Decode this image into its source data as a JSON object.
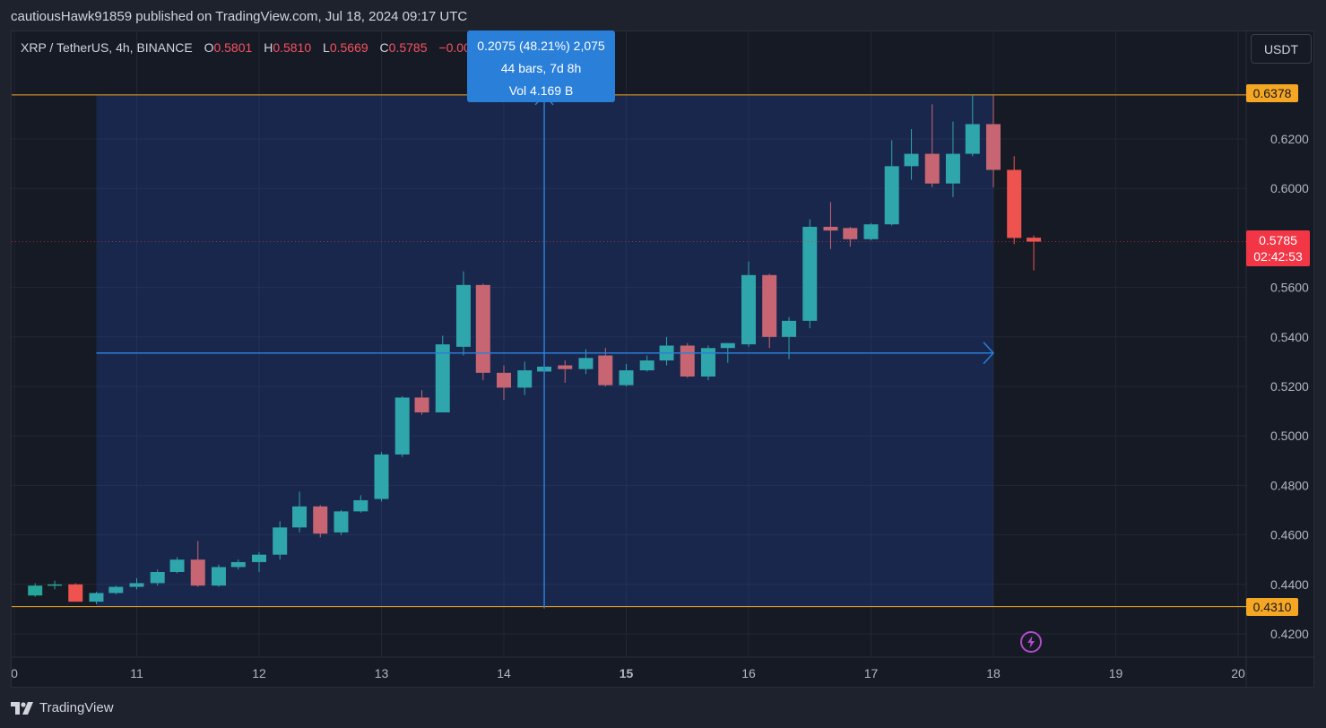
{
  "publisher_line": "cautiousHawk91859 published on TradingView.com, Jul 18, 2024 09:17 UTC",
  "legend": {
    "symbol": "XRP / TetherUS, 4h, BINANCE",
    "open_label": "O",
    "open": "0.5801",
    "high_label": "H",
    "high": "0.5810",
    "low_label": "L",
    "low": "0.5669",
    "close_label": "C",
    "close": "0.5785",
    "change": "−0.0015 (−0.26%)"
  },
  "currency": "USDT",
  "measure": {
    "line1": "0.2075 (48.21%) 2,075",
    "line2": "44 bars, 7d 8h",
    "line3": "Vol 4.169 B"
  },
  "price_tags": {
    "high": "0.6378",
    "low": "0.4310",
    "last": "0.5785",
    "countdown": "02:42:53"
  },
  "brand": "TradingView",
  "icons": {
    "logo": "tradingview-logo-icon",
    "flash": "lightning-icon"
  },
  "colors": {
    "up": "#26a69a",
    "down": "#ef5350",
    "up_muted": "#2fa5ac",
    "down_muted": "#c76672",
    "accent": "#2962ff",
    "level": "#f5a623"
  },
  "chart_data": {
    "type": "candlestick",
    "x_ticks": [
      "0",
      "11",
      "12",
      "13",
      "14",
      "15",
      "16",
      "17",
      "18",
      "19",
      "20"
    ],
    "y_ticks": [
      "0.4200",
      "0.4400",
      "0.4600",
      "0.4800",
      "0.5000",
      "0.5200",
      "0.5400",
      "0.5600",
      "0.6000",
      "0.6200"
    ],
    "ylim": [
      0.413,
      0.664
    ],
    "range_high": 0.6378,
    "range_low": 0.431,
    "crosshair": {
      "x_day": 14.33,
      "price": 0.5335
    },
    "measure_range": {
      "x_start_day": 10.67,
      "x_end_day": 18.0
    },
    "candles": [
      {
        "t": 10.17,
        "o": 0.4355,
        "h": 0.4405,
        "l": 0.435,
        "c": 0.4395
      },
      {
        "t": 10.33,
        "o": 0.4395,
        "h": 0.4415,
        "l": 0.438,
        "c": 0.44
      },
      {
        "t": 10.5,
        "o": 0.44,
        "h": 0.4405,
        "l": 0.433,
        "c": 0.433
      },
      {
        "t": 10.67,
        "o": 0.433,
        "h": 0.437,
        "l": 0.432,
        "c": 0.4365
      },
      {
        "t": 10.83,
        "o": 0.4365,
        "h": 0.4395,
        "l": 0.436,
        "c": 0.439
      },
      {
        "t": 11.0,
        "o": 0.439,
        "h": 0.4425,
        "l": 0.438,
        "c": 0.4405
      },
      {
        "t": 11.17,
        "o": 0.4405,
        "h": 0.446,
        "l": 0.4395,
        "c": 0.445
      },
      {
        "t": 11.33,
        "o": 0.445,
        "h": 0.451,
        "l": 0.4445,
        "c": 0.45
      },
      {
        "t": 11.5,
        "o": 0.45,
        "h": 0.4575,
        "l": 0.439,
        "c": 0.4395
      },
      {
        "t": 11.67,
        "o": 0.4395,
        "h": 0.448,
        "l": 0.439,
        "c": 0.447
      },
      {
        "t": 11.83,
        "o": 0.447,
        "h": 0.45,
        "l": 0.446,
        "c": 0.449
      },
      {
        "t": 12.0,
        "o": 0.449,
        "h": 0.453,
        "l": 0.445,
        "c": 0.452
      },
      {
        "t": 12.17,
        "o": 0.452,
        "h": 0.4655,
        "l": 0.45,
        "c": 0.463
      },
      {
        "t": 12.33,
        "o": 0.463,
        "h": 0.4775,
        "l": 0.461,
        "c": 0.4715
      },
      {
        "t": 12.5,
        "o": 0.4715,
        "h": 0.472,
        "l": 0.459,
        "c": 0.4605
      },
      {
        "t": 12.67,
        "o": 0.461,
        "h": 0.47,
        "l": 0.46,
        "c": 0.4695
      },
      {
        "t": 12.83,
        "o": 0.4695,
        "h": 0.476,
        "l": 0.469,
        "c": 0.474
      },
      {
        "t": 13.0,
        "o": 0.4745,
        "h": 0.4935,
        "l": 0.4735,
        "c": 0.4925
      },
      {
        "t": 13.17,
        "o": 0.4925,
        "h": 0.516,
        "l": 0.4915,
        "c": 0.5155
      },
      {
        "t": 13.33,
        "o": 0.5155,
        "h": 0.5185,
        "l": 0.5085,
        "c": 0.5095
      },
      {
        "t": 13.5,
        "o": 0.5095,
        "h": 0.5405,
        "l": 0.5095,
        "c": 0.537
      },
      {
        "t": 13.67,
        "o": 0.536,
        "h": 0.5665,
        "l": 0.5325,
        "c": 0.561
      },
      {
        "t": 13.83,
        "o": 0.561,
        "h": 0.5615,
        "l": 0.5225,
        "c": 0.5255
      },
      {
        "t": 14.0,
        "o": 0.5255,
        "h": 0.5285,
        "l": 0.5145,
        "c": 0.5195
      },
      {
        "t": 14.17,
        "o": 0.5195,
        "h": 0.53,
        "l": 0.5165,
        "c": 0.5265
      },
      {
        "t": 14.33,
        "o": 0.526,
        "h": 0.529,
        "l": 0.5245,
        "c": 0.528
      },
      {
        "t": 14.5,
        "o": 0.5285,
        "h": 0.5305,
        "l": 0.5215,
        "c": 0.527
      },
      {
        "t": 14.67,
        "o": 0.527,
        "h": 0.535,
        "l": 0.525,
        "c": 0.5315
      },
      {
        "t": 14.83,
        "o": 0.5325,
        "h": 0.5355,
        "l": 0.52,
        "c": 0.5205
      },
      {
        "t": 15.0,
        "o": 0.5205,
        "h": 0.529,
        "l": 0.52,
        "c": 0.5265
      },
      {
        "t": 15.17,
        "o": 0.5265,
        "h": 0.5325,
        "l": 0.526,
        "c": 0.5305
      },
      {
        "t": 15.33,
        "o": 0.5305,
        "h": 0.54,
        "l": 0.5285,
        "c": 0.5365
      },
      {
        "t": 15.5,
        "o": 0.5365,
        "h": 0.5375,
        "l": 0.5235,
        "c": 0.524
      },
      {
        "t": 15.67,
        "o": 0.524,
        "h": 0.5365,
        "l": 0.5225,
        "c": 0.5355
      },
      {
        "t": 15.83,
        "o": 0.5355,
        "h": 0.5375,
        "l": 0.5295,
        "c": 0.5375
      },
      {
        "t": 16.0,
        "o": 0.537,
        "h": 0.5705,
        "l": 0.536,
        "c": 0.565
      },
      {
        "t": 16.17,
        "o": 0.565,
        "h": 0.5655,
        "l": 0.5355,
        "c": 0.54
      },
      {
        "t": 16.33,
        "o": 0.54,
        "h": 0.548,
        "l": 0.531,
        "c": 0.5465
      },
      {
        "t": 16.5,
        "o": 0.5465,
        "h": 0.5875,
        "l": 0.5435,
        "c": 0.5845
      },
      {
        "t": 16.67,
        "o": 0.5845,
        "h": 0.5945,
        "l": 0.5755,
        "c": 0.583
      },
      {
        "t": 16.83,
        "o": 0.584,
        "h": 0.5845,
        "l": 0.5765,
        "c": 0.5795
      },
      {
        "t": 17.0,
        "o": 0.5795,
        "h": 0.586,
        "l": 0.579,
        "c": 0.5855
      },
      {
        "t": 17.17,
        "o": 0.5855,
        "h": 0.6195,
        "l": 0.585,
        "c": 0.609
      },
      {
        "t": 17.33,
        "o": 0.609,
        "h": 0.624,
        "l": 0.6035,
        "c": 0.614
      },
      {
        "t": 17.5,
        "o": 0.614,
        "h": 0.634,
        "l": 0.6005,
        "c": 0.602
      },
      {
        "t": 17.67,
        "o": 0.602,
        "h": 0.627,
        "l": 0.5965,
        "c": 0.614
      },
      {
        "t": 17.83,
        "o": 0.614,
        "h": 0.6378,
        "l": 0.613,
        "c": 0.626
      },
      {
        "t": 18.0,
        "o": 0.626,
        "h": 0.6378,
        "l": 0.6005,
        "c": 0.6075
      },
      {
        "t": 18.17,
        "o": 0.6075,
        "h": 0.613,
        "l": 0.5775,
        "c": 0.58
      },
      {
        "t": 18.33,
        "o": 0.5801,
        "h": 0.581,
        "l": 0.5669,
        "c": 0.5785
      }
    ]
  }
}
